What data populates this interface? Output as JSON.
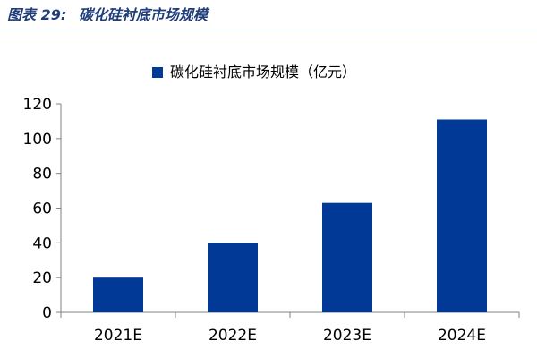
{
  "figure": {
    "label": "图表 29:",
    "title": "碳化硅衬底市场规模"
  },
  "chart_data": {
    "type": "bar",
    "categories": [
      "2021E",
      "2022E",
      "2023E",
      "2024E"
    ],
    "series": [
      {
        "name": "碳化硅衬底市场规模（亿元）",
        "values": [
          20,
          40,
          63,
          111
        ]
      }
    ],
    "ylim": [
      0,
      120
    ],
    "yticks": [
      0,
      20,
      40,
      60,
      80,
      100,
      120
    ],
    "grid": false,
    "legend_position": "top-center",
    "bar_color": "#003a96"
  }
}
